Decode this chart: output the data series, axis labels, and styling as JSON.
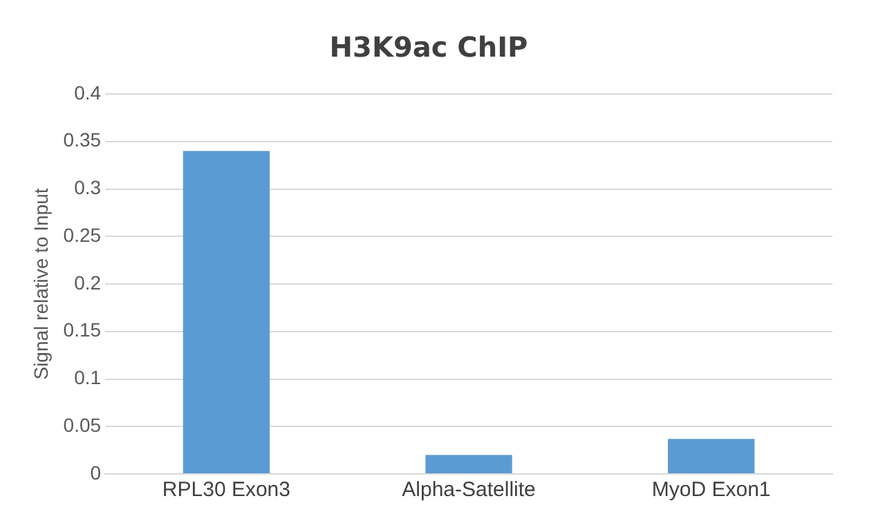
{
  "chart_data": {
    "type": "bar",
    "title": "H3K9ac ChIP",
    "ylabel": "Signal relative to Input",
    "categories": [
      "RPL30 Exon3",
      "Alpha-Satellite",
      "MyoD Exon1"
    ],
    "values": [
      0.34,
      0.02,
      0.037
    ],
    "color": "#5b9bd5",
    "ylim": [
      0,
      0.4
    ],
    "yticks": [
      0,
      0.05,
      0.1,
      0.15,
      0.2,
      0.25,
      0.3,
      0.35,
      0.4
    ],
    "grid": "y",
    "legend": false
  }
}
